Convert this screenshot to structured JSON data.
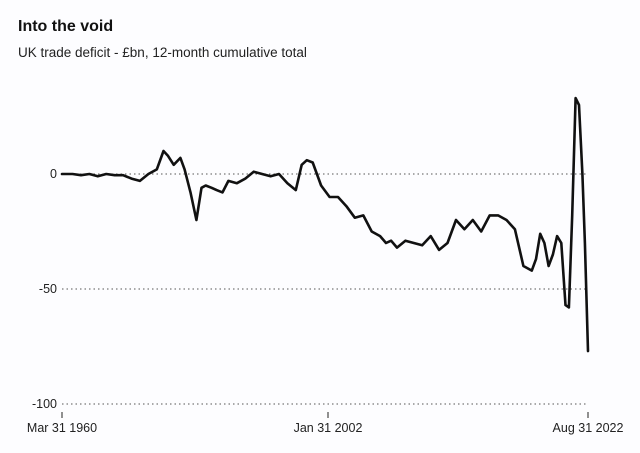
{
  "chart_data": {
    "type": "line",
    "title": "Into the void",
    "subtitle": "UK trade deficit - £bn, 12-month cumulative total",
    "xlabel": "",
    "ylabel": "",
    "x_tick_labels": [
      "Mar 31 1960",
      "Jan 31 2002",
      "Aug 31 2022"
    ],
    "y_tick_labels": [
      "0",
      "-50",
      "-100"
    ],
    "y_ticks": [
      0,
      -50,
      -100
    ],
    "ylim": [
      -100,
      35
    ],
    "xlim": [
      1960.25,
      2022.67
    ],
    "grid": "horizontal dotted",
    "line_color": "#111111",
    "series": [
      {
        "x": [
          1960.25,
          1961.5,
          1962.5,
          1963.5,
          1964.5,
          1965.5,
          1966.5,
          1967.5,
          1968.5,
          1969.5,
          1970.5,
          1971.5,
          1972.3,
          1972.8,
          1973.5,
          1974.3,
          1974.8,
          1975.5,
          1976.2,
          1976.8,
          1977.3,
          1978.0,
          1978.6,
          1979.3,
          1980.0,
          1981.0,
          1982.0,
          1983.0,
          1984.0,
          1985.0,
          1986.0,
          1987.0,
          1988.0,
          1988.7,
          1989.3,
          1990.0,
          1991.0,
          1992.0,
          1993.0,
          1994.0,
          1995.0,
          1996.0,
          1997.0,
          1998.0,
          1998.7,
          1999.3,
          2000.0,
          2001.0,
          2002.0,
          2003.0,
          2004.0,
          2005.0,
          2006.0,
          2007.0,
          2008.0,
          2009.0,
          2010.0,
          2011.0,
          2012.0,
          2013.0,
          2014.0,
          2015.0,
          2016.0,
          2016.5,
          2017.0,
          2017.5,
          2018.0,
          2018.5,
          2019.0,
          2019.5,
          2020.0,
          2020.4,
          2020.8,
          2021.2,
          2021.6,
          2022.0,
          2022.3,
          2022.67
        ],
        "y": [
          0,
          0,
          -0.5,
          0,
          -1,
          0,
          -0.5,
          -0.5,
          -2,
          -3,
          0,
          2,
          10,
          8,
          4,
          7,
          2,
          -8,
          -20,
          -6,
          -5,
          -6,
          -7,
          -8,
          -3,
          -4,
          -2,
          1,
          0,
          -1,
          0,
          -4,
          -7,
          4,
          6,
          5,
          -5,
          -10,
          -10,
          -14,
          -19,
          -18,
          -25,
          -27,
          -30,
          -29,
          -32,
          -29,
          -30,
          -31,
          -27,
          -33,
          -30,
          -20,
          -24,
          -20,
          -25,
          -18,
          -18,
          -20,
          -24,
          -40,
          -42,
          -37,
          -26,
          -30,
          -40,
          -35,
          -27,
          -30,
          -57,
          -58,
          -18,
          33,
          30,
          0,
          -30,
          -77
        ]
      }
    ]
  }
}
